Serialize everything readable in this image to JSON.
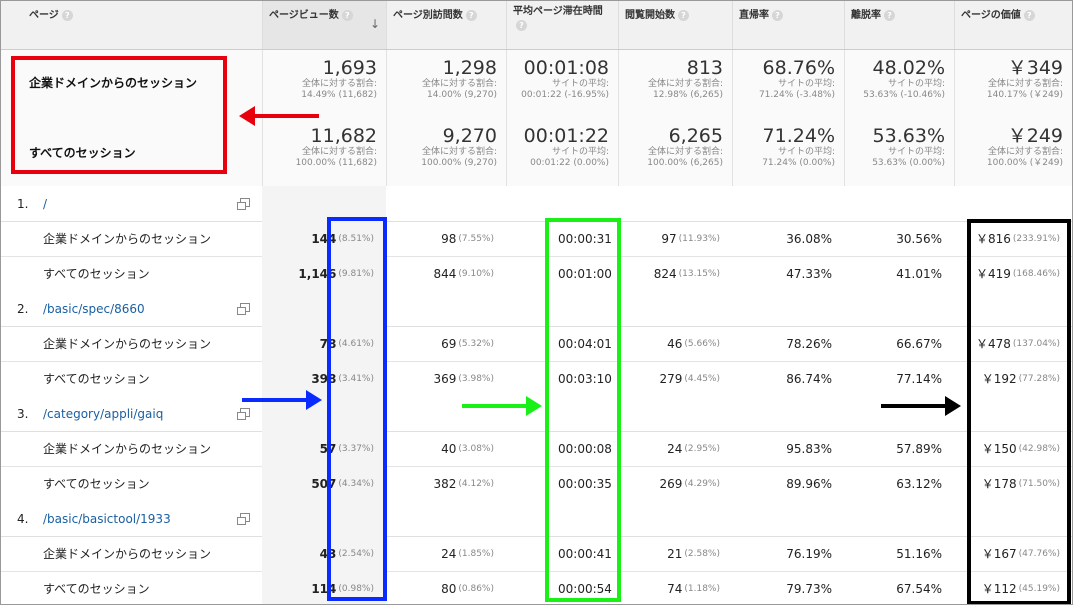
{
  "header": {
    "columns": [
      "ページ",
      "ページビュー数",
      "ページ別訪問数",
      "平均ページ滞在時間",
      "閲覧開始数",
      "直帰率",
      "離脱率",
      "ページの価値"
    ],
    "help_glyph": "?",
    "sort_glyph": "↓"
  },
  "summary": [
    {
      "label": "企業ドメインからのセッション",
      "values": [
        {
          "main": "1,693",
          "sub1": "全体に対する割合:",
          "sub2": "14.49% (11,682)"
        },
        {
          "main": "1,298",
          "sub1": "全体に対する割合:",
          "sub2": "14.00% (9,270)"
        },
        {
          "main": "00:01:08",
          "sub1": "サイトの平均:",
          "sub2": "00:01:22 (-16.95%)"
        },
        {
          "main": "813",
          "sub1": "全体に対する割合:",
          "sub2": "12.98% (6,265)"
        },
        {
          "main": "68.76%",
          "sub1": "サイトの平均:",
          "sub2": "71.24% (-3.48%)"
        },
        {
          "main": "48.02%",
          "sub1": "サイトの平均:",
          "sub2": "53.63% (-10.46%)"
        },
        {
          "main": "￥349",
          "sub1": "全体に対する割合:",
          "sub2": "140.17% (￥249)"
        }
      ]
    },
    {
      "label": "すべてのセッション",
      "values": [
        {
          "main": "11,682",
          "sub1": "全体に対する割合:",
          "sub2": "100.00% (11,682)"
        },
        {
          "main": "9,270",
          "sub1": "全体に対する割合:",
          "sub2": "100.00% (9,270)"
        },
        {
          "main": "00:01:22",
          "sub1": "サイトの平均:",
          "sub2": "00:01:22 (0.00%)"
        },
        {
          "main": "6,265",
          "sub1": "全体に対する割合:",
          "sub2": "100.00% (6,265)"
        },
        {
          "main": "71.24%",
          "sub1": "サイトの平均:",
          "sub2": "71.24% (0.00%)"
        },
        {
          "main": "53.63%",
          "sub1": "サイトの平均:",
          "sub2": "53.63% (0.00%)"
        },
        {
          "main": "￥249",
          "sub1": "全体に対する割合:",
          "sub2": "100.00% (￥249)"
        }
      ]
    }
  ],
  "pages": [
    {
      "num": "1.",
      "path": "/",
      "rows": [
        {
          "label": "企業ドメインからのセッション",
          "pv": "144",
          "pv_pct": "(8.51%)",
          "visits": "98",
          "visits_pct": "(7.55%)",
          "time": "00:00:31",
          "entr": "97",
          "entr_pct": "(11.93%)",
          "bounce": "36.08%",
          "exit": "30.56%",
          "value": "￥816",
          "value_pct": "(233.91%)"
        },
        {
          "label": "すべてのセッション",
          "pv": "1,146",
          "pv_pct": "(9.81%)",
          "visits": "844",
          "visits_pct": "(9.10%)",
          "time": "00:01:00",
          "entr": "824",
          "entr_pct": "(13.15%)",
          "bounce": "47.33%",
          "exit": "41.01%",
          "value": "￥419",
          "value_pct": "(168.46%)"
        }
      ]
    },
    {
      "num": "2.",
      "path": "/basic/spec/8660",
      "rows": [
        {
          "label": "企業ドメインからのセッション",
          "pv": "78",
          "pv_pct": "(4.61%)",
          "visits": "69",
          "visits_pct": "(5.32%)",
          "time": "00:04:01",
          "entr": "46",
          "entr_pct": "(5.66%)",
          "bounce": "78.26%",
          "exit": "66.67%",
          "value": "￥478",
          "value_pct": "(137.04%)"
        },
        {
          "label": "すべてのセッション",
          "pv": "398",
          "pv_pct": "(3.41%)",
          "visits": "369",
          "visits_pct": "(3.98%)",
          "time": "00:03:10",
          "entr": "279",
          "entr_pct": "(4.45%)",
          "bounce": "86.74%",
          "exit": "77.14%",
          "value": "￥192",
          "value_pct": "(77.28%)"
        }
      ]
    },
    {
      "num": "3.",
      "path": "/category/appli/gaiq",
      "rows": [
        {
          "label": "企業ドメインからのセッション",
          "pv": "57",
          "pv_pct": "(3.37%)",
          "visits": "40",
          "visits_pct": "(3.08%)",
          "time": "00:00:08",
          "entr": "24",
          "entr_pct": "(2.95%)",
          "bounce": "95.83%",
          "exit": "57.89%",
          "value": "￥150",
          "value_pct": "(42.98%)"
        },
        {
          "label": "すべてのセッション",
          "pv": "507",
          "pv_pct": "(4.34%)",
          "visits": "382",
          "visits_pct": "(4.12%)",
          "time": "00:00:35",
          "entr": "269",
          "entr_pct": "(4.29%)",
          "bounce": "89.96%",
          "exit": "63.12%",
          "value": "￥178",
          "value_pct": "(71.50%)"
        }
      ]
    },
    {
      "num": "4.",
      "path": "/basic/basictool/1933",
      "rows": [
        {
          "label": "企業ドメインからのセッション",
          "pv": "43",
          "pv_pct": "(2.54%)",
          "visits": "24",
          "visits_pct": "(1.85%)",
          "time": "00:00:41",
          "entr": "21",
          "entr_pct": "(2.58%)",
          "bounce": "76.19%",
          "exit": "51.16%",
          "value": "￥167",
          "value_pct": "(47.76%)"
        },
        {
          "label": "すべてのセッション",
          "pv": "114",
          "pv_pct": "(0.98%)",
          "visits": "80",
          "visits_pct": "(0.86%)",
          "time": "00:00:54",
          "entr": "74",
          "entr_pct": "(1.18%)",
          "bounce": "79.73%",
          "exit": "67.54%",
          "value": "￥112",
          "value_pct": "(45.19%)"
        }
      ]
    }
  ],
  "annotation_colors": {
    "red": "#e8000d",
    "blue": "#0a2bff",
    "green": "#18f018",
    "black": "#000000"
  }
}
